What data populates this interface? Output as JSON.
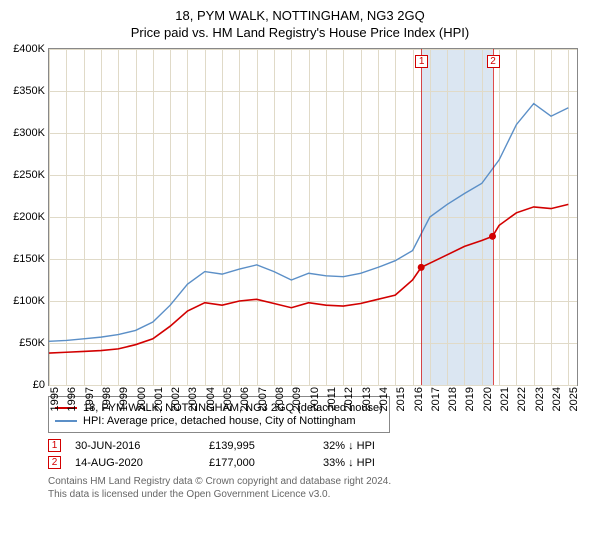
{
  "title": "18, PYM WALK, NOTTINGHAM, NG3 2GQ",
  "subtitle": "Price paid vs. HM Land Registry's House Price Index (HPI)",
  "chart": {
    "type": "line",
    "x_range": [
      1995,
      2025.5
    ],
    "y_range": [
      0,
      400000
    ],
    "y_ticks": [
      0,
      50000,
      100000,
      150000,
      200000,
      250000,
      300000,
      350000,
      400000
    ],
    "y_tick_labels": [
      "£0",
      "£50K",
      "£100K",
      "£150K",
      "£200K",
      "£250K",
      "£300K",
      "£350K",
      "£400K"
    ],
    "x_ticks": [
      1995,
      1996,
      1997,
      1998,
      1999,
      2000,
      2001,
      2002,
      2003,
      2004,
      2005,
      2006,
      2007,
      2008,
      2009,
      2010,
      2011,
      2012,
      2013,
      2014,
      2015,
      2016,
      2017,
      2018,
      2019,
      2020,
      2021,
      2022,
      2023,
      2024,
      2025
    ],
    "background_color": "#ffffff",
    "grid_color": "#e0dac8",
    "axis_color": "#888888",
    "highlight_band": {
      "x_start": 2016.5,
      "x_end": 2020.62,
      "color": "#dbe6f2"
    },
    "series": [
      {
        "name": "property_price",
        "color": "#d20000",
        "width": 1.6,
        "points": [
          [
            1995,
            38000
          ],
          [
            1996,
            39000
          ],
          [
            1997,
            40000
          ],
          [
            1998,
            41000
          ],
          [
            1999,
            43000
          ],
          [
            2000,
            48000
          ],
          [
            2001,
            55000
          ],
          [
            2002,
            70000
          ],
          [
            2003,
            88000
          ],
          [
            2004,
            98000
          ],
          [
            2005,
            95000
          ],
          [
            2006,
            100000
          ],
          [
            2007,
            102000
          ],
          [
            2008,
            97000
          ],
          [
            2009,
            92000
          ],
          [
            2010,
            98000
          ],
          [
            2011,
            95000
          ],
          [
            2012,
            94000
          ],
          [
            2013,
            97000
          ],
          [
            2014,
            102000
          ],
          [
            2015,
            107000
          ],
          [
            2016,
            125000
          ],
          [
            2016.5,
            139995
          ],
          [
            2017,
            145000
          ],
          [
            2018,
            155000
          ],
          [
            2019,
            165000
          ],
          [
            2020,
            172000
          ],
          [
            2020.62,
            177000
          ],
          [
            2021,
            190000
          ],
          [
            2022,
            205000
          ],
          [
            2023,
            212000
          ],
          [
            2024,
            210000
          ],
          [
            2025,
            215000
          ]
        ]
      },
      {
        "name": "hpi",
        "color": "#5b8fc7",
        "width": 1.4,
        "points": [
          [
            1995,
            52000
          ],
          [
            1996,
            53000
          ],
          [
            1997,
            55000
          ],
          [
            1998,
            57000
          ],
          [
            1999,
            60000
          ],
          [
            2000,
            65000
          ],
          [
            2001,
            75000
          ],
          [
            2002,
            95000
          ],
          [
            2003,
            120000
          ],
          [
            2004,
            135000
          ],
          [
            2005,
            132000
          ],
          [
            2006,
            138000
          ],
          [
            2007,
            143000
          ],
          [
            2008,
            135000
          ],
          [
            2009,
            125000
          ],
          [
            2010,
            133000
          ],
          [
            2011,
            130000
          ],
          [
            2012,
            129000
          ],
          [
            2013,
            133000
          ],
          [
            2014,
            140000
          ],
          [
            2015,
            148000
          ],
          [
            2016,
            160000
          ],
          [
            2017,
            200000
          ],
          [
            2018,
            215000
          ],
          [
            2019,
            228000
          ],
          [
            2020,
            240000
          ],
          [
            2021,
            268000
          ],
          [
            2022,
            310000
          ],
          [
            2023,
            335000
          ],
          [
            2024,
            320000
          ],
          [
            2025,
            330000
          ]
        ]
      }
    ],
    "sale_markers": [
      {
        "n": "1",
        "x": 2016.5,
        "y": 139995,
        "box_color": "#d20000"
      },
      {
        "n": "2",
        "x": 2020.62,
        "y": 177000,
        "box_color": "#d20000"
      }
    ]
  },
  "legend": {
    "items": [
      {
        "color": "#d20000",
        "label": "18, PYM WALK, NOTTINGHAM, NG3 2GQ (detached house)"
      },
      {
        "color": "#5b8fc7",
        "label": "HPI: Average price, detached house, City of Nottingham"
      }
    ]
  },
  "sales": [
    {
      "n": "1",
      "box_color": "#d20000",
      "date": "30-JUN-2016",
      "price": "£139,995",
      "hpi": "32% ↓ HPI"
    },
    {
      "n": "2",
      "box_color": "#d20000",
      "date": "14-AUG-2020",
      "price": "£177,000",
      "hpi": "33% ↓ HPI"
    }
  ],
  "footer": {
    "line1": "Contains HM Land Registry data © Crown copyright and database right 2024.",
    "line2": "This data is licensed under the Open Government Licence v3.0."
  }
}
